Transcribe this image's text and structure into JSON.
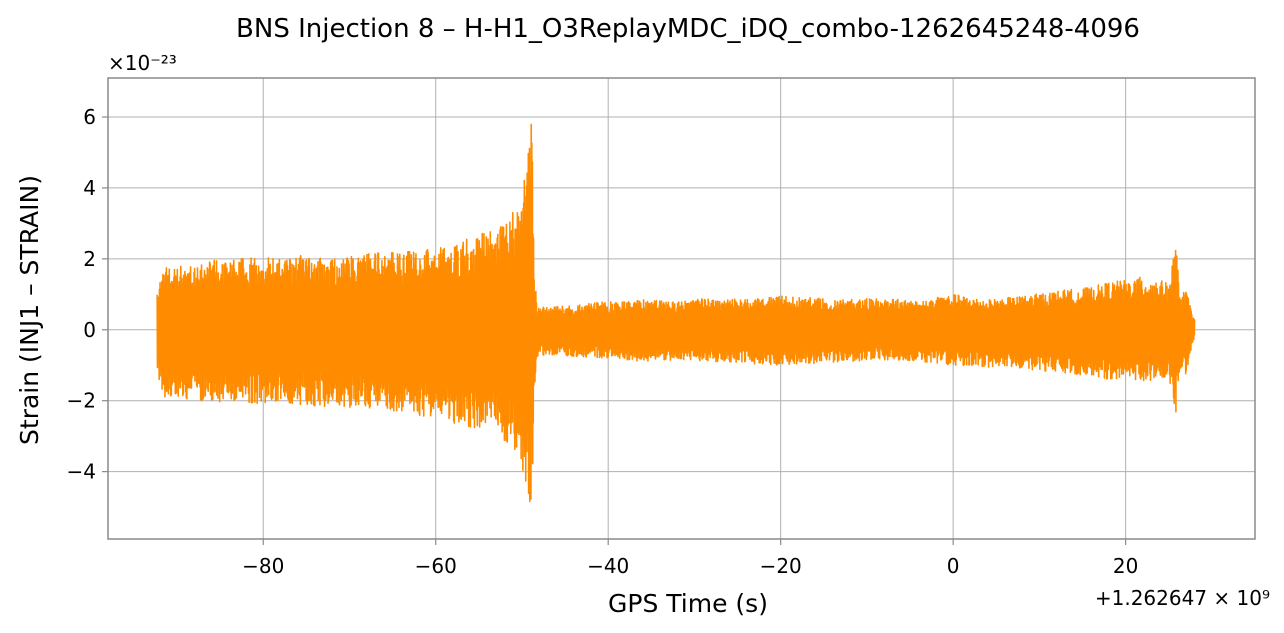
{
  "chart_data": {
    "type": "line",
    "title": "BNS Injection 8 – H-H1_O3ReplayMDC_iDQ_combo-1262645248-4096",
    "xlabel": "GPS Time (s)",
    "ylabel": "Strain (INJ1 – STRAIN)",
    "x_offset_label": "+1.262647 × 10⁹",
    "y_scale_label": "×10⁻²³",
    "xlim": [
      -98,
      35
    ],
    "ylim": [
      -5.9,
      7.1
    ],
    "x_ticks": [
      -80,
      -60,
      -40,
      -20,
      0,
      20
    ],
    "x_tick_labels": [
      "−80",
      "−60",
      "−40",
      "−20",
      "0",
      "20"
    ],
    "y_ticks": [
      -4,
      -2,
      0,
      2,
      4,
      6
    ],
    "y_tick_labels": [
      "−4",
      "−2",
      "0",
      "2",
      "4",
      "6"
    ],
    "grid": true,
    "series": [
      {
        "color": "#ff8c00",
        "x_range": [
          -92.3,
          28.0
        ],
        "envelope": {
          "x": [
            -92.3,
            -91.5,
            -88,
            -84,
            -80,
            -76,
            -72,
            -68,
            -64,
            -60,
            -57,
            -55,
            -53,
            -51,
            -50,
            -49.3,
            -48.9,
            -48.6,
            -48.3,
            -47,
            -44,
            -40,
            -36,
            -32,
            -28,
            -24,
            -20,
            -16,
            -12,
            -8,
            -4,
            0,
            4,
            8,
            12,
            16,
            18,
            20,
            22,
            24,
            25,
            25.8,
            26.3,
            27,
            28
          ],
          "upper": [
            1.0,
            1.8,
            1.9,
            2.0,
            2.05,
            2.1,
            2.0,
            2.15,
            2.2,
            2.3,
            2.5,
            2.7,
            2.9,
            3.4,
            3.9,
            4.8,
            6.5,
            2.2,
            0.7,
            0.65,
            0.7,
            0.8,
            0.85,
            0.8,
            0.9,
            0.85,
            0.95,
            0.9,
            0.85,
            0.9,
            0.8,
            1.0,
            0.85,
            0.95,
            1.1,
            1.2,
            1.35,
            1.4,
            1.5,
            1.4,
            1.3,
            2.5,
            1.0,
            1.1,
            0.3
          ],
          "lower": [
            -1.2,
            -1.9,
            -2.0,
            -2.05,
            -2.1,
            -2.1,
            -2.2,
            -2.2,
            -2.4,
            -2.5,
            -2.7,
            -2.8,
            -3.0,
            -3.4,
            -4.0,
            -4.6,
            -5.4,
            -2.0,
            -0.75,
            -0.7,
            -0.75,
            -0.8,
            -0.9,
            -0.85,
            -0.9,
            -0.95,
            -1.0,
            -0.95,
            -0.9,
            -0.85,
            -0.9,
            -1.0,
            -1.05,
            -1.1,
            -1.2,
            -1.3,
            -1.4,
            -1.35,
            -1.45,
            -1.4,
            -1.3,
            -2.4,
            -1.1,
            -1.3,
            -0.2
          ]
        }
      }
    ]
  }
}
